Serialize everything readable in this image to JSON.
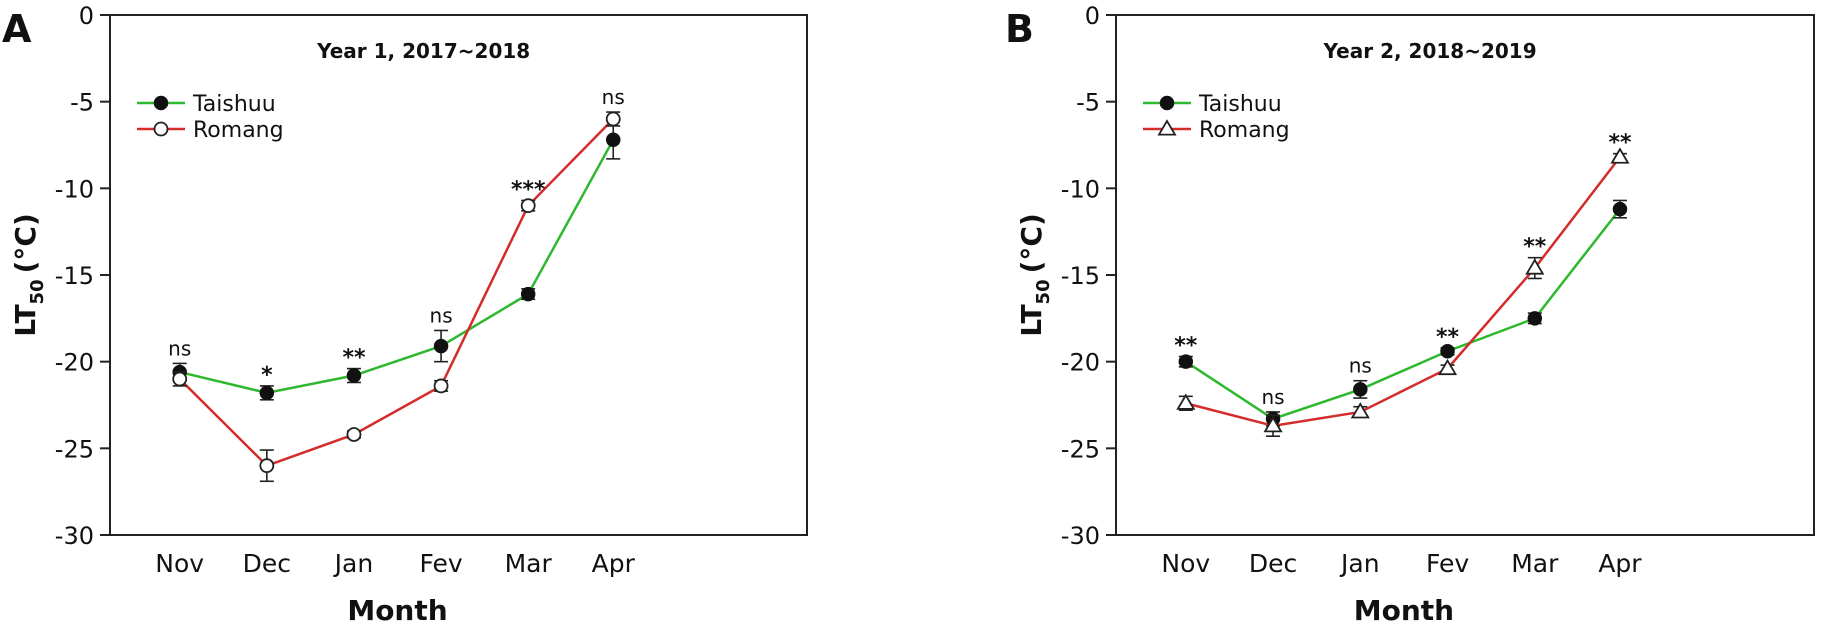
{
  "chart_data": [
    {
      "panel_label": "A",
      "type": "line",
      "title": "Year 1, 2017~2018",
      "xlabel": "Month",
      "ylabel_main": "LT",
      "ylabel_sub": "50",
      "ylabel_unit": "(°C)",
      "ylim": [
        -30,
        0
      ],
      "yticks": [
        0,
        -5,
        -10,
        -15,
        -20,
        -25,
        -30
      ],
      "categories": [
        "Nov",
        "Dec",
        "Jan",
        "Fev",
        "Mar",
        "Apr"
      ],
      "legend_position": "top-left",
      "grid": false,
      "series": [
        {
          "name": "Taishuu",
          "color": "#2db82d",
          "marker": "filled-circle",
          "values": [
            -20.6,
            -21.8,
            -20.8,
            -19.1,
            -16.1,
            -7.2
          ],
          "errors": [
            0.5,
            0.4,
            0.4,
            0.9,
            0.3,
            1.1
          ]
        },
        {
          "name": "Romang",
          "color": "#d42b2b",
          "marker": "open-circle",
          "values": [
            -21.0,
            -26.0,
            -24.2,
            -21.4,
            -11.0,
            -6.0
          ],
          "errors": [
            0.4,
            0.9,
            0.2,
            0.3,
            0.3,
            0.4
          ]
        }
      ],
      "annotations": [
        "ns",
        "*",
        "**",
        "ns",
        "***",
        "ns"
      ]
    },
    {
      "panel_label": "B",
      "type": "line",
      "title": "Year 2, 2018~2019",
      "xlabel": "Month",
      "ylabel_main": "LT",
      "ylabel_sub": "50",
      "ylabel_unit": "(°C)",
      "ylim": [
        -30,
        0
      ],
      "yticks": [
        0,
        -5,
        -10,
        -15,
        -20,
        -25,
        -30
      ],
      "categories": [
        "Nov",
        "Dec",
        "Jan",
        "Fev",
        "Mar",
        "Apr"
      ],
      "legend_position": "top-left",
      "grid": false,
      "series": [
        {
          "name": "Taishuu",
          "color": "#2db82d",
          "marker": "filled-circle",
          "values": [
            -20.0,
            -23.3,
            -21.6,
            -19.4,
            -17.5,
            -11.2
          ],
          "errors": [
            0.3,
            0.4,
            0.5,
            0.2,
            0.3,
            0.5
          ]
        },
        {
          "name": "Romang",
          "color": "#d42b2b",
          "marker": "open-triangle",
          "values": [
            -22.4,
            -23.7,
            -22.9,
            -20.4,
            -14.6,
            -8.2
          ],
          "errors": [
            0.4,
            0.6,
            0.3,
            0.2,
            0.6,
            0.2
          ]
        }
      ],
      "annotations": [
        "**",
        "ns",
        "ns",
        "**",
        "**",
        "**"
      ]
    }
  ]
}
